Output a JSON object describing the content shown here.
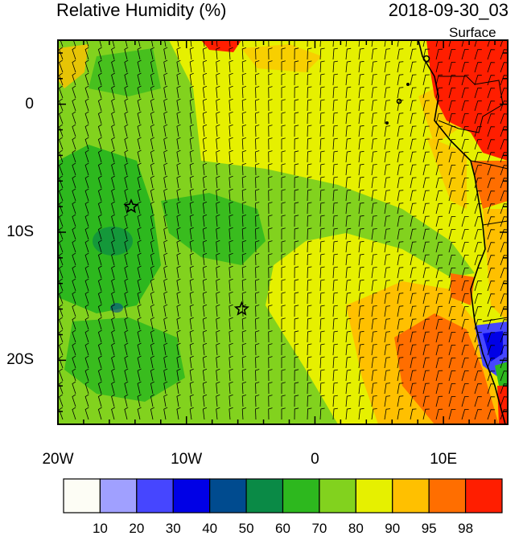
{
  "header": {
    "title": "Relative Humidity (%)",
    "datetime": "2018-09-30_03",
    "level": "Surface"
  },
  "map": {
    "lon_labels": [
      {
        "value": -20,
        "text": "20W"
      },
      {
        "value": -10,
        "text": "10W"
      },
      {
        "value": 0,
        "text": "0"
      },
      {
        "value": 10,
        "text": "10E"
      }
    ],
    "lat_labels": [
      {
        "value": 0,
        "text": "0"
      },
      {
        "value": -10,
        "text": "10S"
      },
      {
        "value": -20,
        "text": "20S"
      }
    ],
    "lon_range": [
      -20,
      15
    ],
    "lat_range": [
      -25,
      5
    ],
    "markers": [
      {
        "name": "star-marker",
        "lon": -14.3,
        "lat": -8.0
      },
      {
        "name": "star-marker",
        "lon": -5.7,
        "lat": -16.0
      }
    ]
  },
  "colorbar": {
    "labels": [
      "10",
      "20",
      "30",
      "40",
      "50",
      "60",
      "70",
      "80",
      "90",
      "95",
      "98"
    ],
    "colors": [
      "#fdfdf5",
      "#a0a0ff",
      "#4646ff",
      "#0000e6",
      "#004b8f",
      "#0a8a46",
      "#2db81e",
      "#82d21e",
      "#e6f000",
      "#ffc000",
      "#ff6e00",
      "#ff1e00"
    ]
  }
}
